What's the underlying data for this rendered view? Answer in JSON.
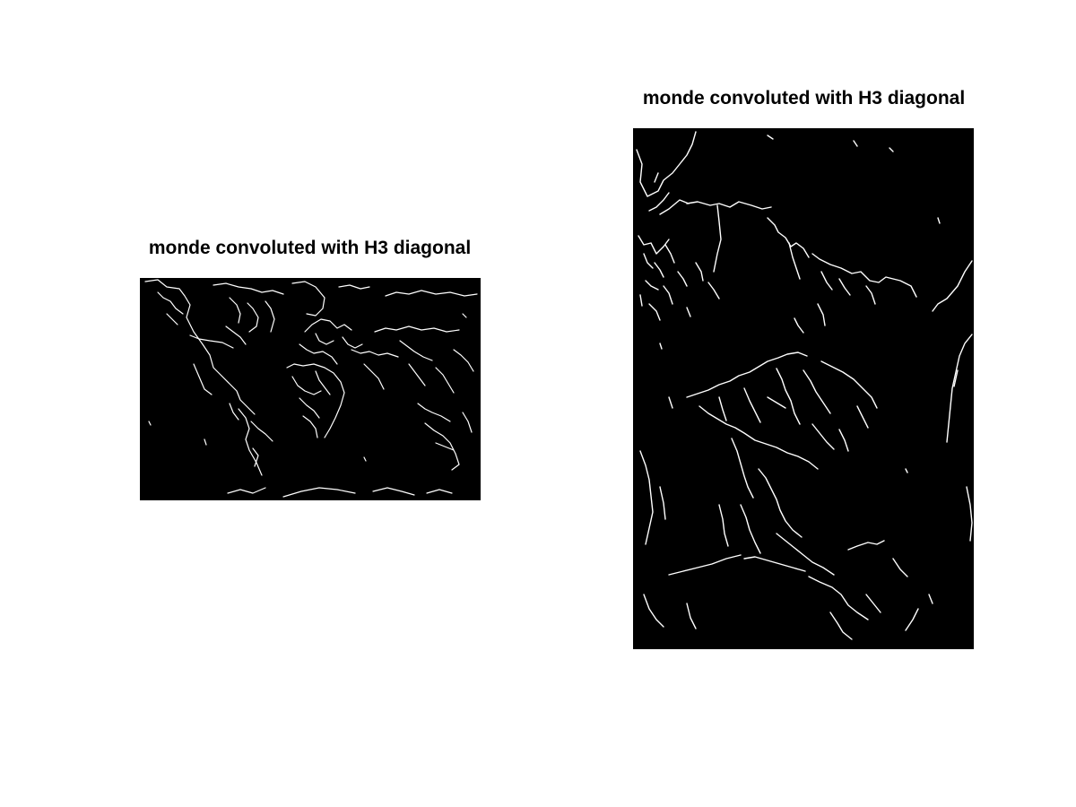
{
  "figure": {
    "background": "#ffffff",
    "panels": [
      {
        "id": "left",
        "title": "monde convoluted with H3 diagonal",
        "image_background": "#000000",
        "edge_color": "#ffffff",
        "content": "world-map-edges"
      },
      {
        "id": "right",
        "title": "monde convoluted with H3 diagonal",
        "image_background": "#000000",
        "edge_color": "#ffffff",
        "content": "world-map-edges-zoomed"
      }
    ]
  }
}
